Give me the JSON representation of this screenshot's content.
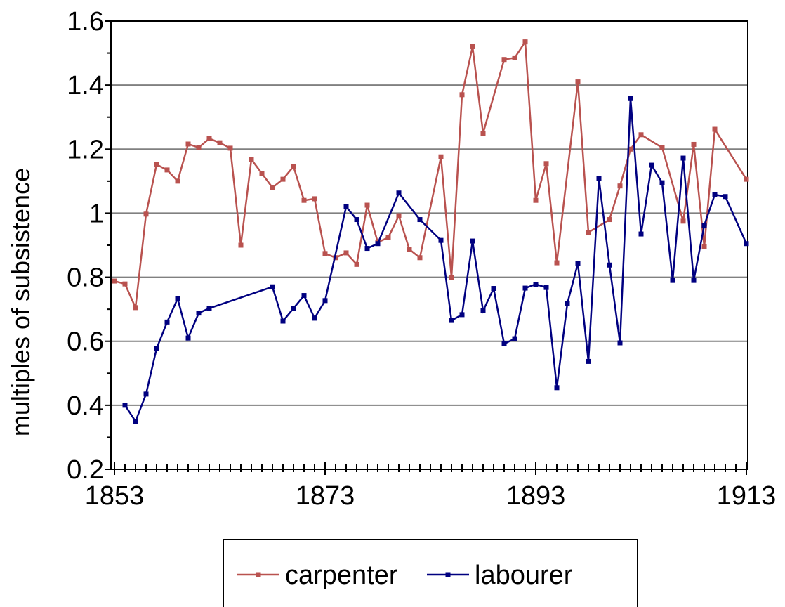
{
  "chart_data": {
    "type": "line",
    "ylabel": "multiples of subsistence",
    "xlim": [
      1853,
      1913
    ],
    "xticks": [
      1853,
      1873,
      1893,
      1913
    ],
    "ylim": [
      0.2,
      1.6
    ],
    "yticks": [
      0.2,
      0.4,
      0.6,
      0.8,
      1,
      1.2,
      1.4,
      1.6
    ],
    "grid": true,
    "legend": "bottom",
    "series": [
      {
        "name": "carpenter",
        "color": "#b9524f",
        "x": [
          1853,
          1854,
          1855,
          1856,
          1857,
          1858,
          1859,
          1860,
          1861,
          1862,
          1863,
          1864,
          1865,
          1866,
          1867,
          1868,
          1869,
          1870,
          1871,
          1872,
          1873,
          1874,
          1875,
          1876,
          1877,
          1878,
          1879,
          1880,
          1881,
          1882,
          1884,
          1885,
          1886,
          1887,
          1888,
          1890,
          1891,
          1892,
          1893,
          1894,
          1895,
          1897,
          1898,
          1900,
          1901,
          1902,
          1903,
          1905,
          1907,
          1908,
          1909,
          1910,
          1913
        ],
        "values": [
          0.788,
          0.779,
          0.705,
          0.997,
          1.152,
          1.135,
          1.1,
          1.216,
          1.205,
          1.233,
          1.22,
          1.203,
          0.9,
          1.168,
          1.124,
          1.08,
          1.106,
          1.146,
          1.04,
          1.045,
          0.874,
          0.861,
          0.876,
          0.84,
          1.025,
          0.909,
          0.924,
          0.992,
          0.887,
          0.861,
          1.176,
          0.8,
          1.37,
          1.52,
          1.25,
          1.48,
          1.485,
          1.535,
          1.04,
          1.155,
          0.845,
          1.41,
          0.94,
          0.98,
          1.085,
          1.2,
          1.245,
          1.205,
          0.975,
          1.215,
          0.895,
          1.262,
          1.106
        ]
      },
      {
        "name": "labourer",
        "color": "#000080",
        "x": [
          1854,
          1855,
          1856,
          1857,
          1858,
          1859,
          1860,
          1861,
          1862,
          1868,
          1869,
          1870,
          1871,
          1872,
          1873,
          1875,
          1876,
          1877,
          1878,
          1880,
          1882,
          1884,
          1885,
          1886,
          1887,
          1888,
          1889,
          1890,
          1891,
          1892,
          1893,
          1894,
          1895,
          1896,
          1897,
          1898,
          1899,
          1900,
          1901,
          1902,
          1903,
          1904,
          1905,
          1906,
          1907,
          1908,
          1909,
          1910,
          1911,
          1913
        ],
        "values": [
          0.4,
          0.35,
          0.435,
          0.577,
          0.66,
          0.733,
          0.61,
          0.688,
          0.703,
          0.77,
          0.663,
          0.703,
          0.743,
          0.672,
          0.727,
          1.02,
          0.98,
          0.89,
          0.905,
          1.063,
          0.98,
          0.915,
          0.665,
          0.683,
          0.913,
          0.695,
          0.765,
          0.592,
          0.608,
          0.766,
          0.778,
          0.768,
          0.455,
          0.718,
          0.843,
          0.537,
          1.108,
          0.838,
          0.595,
          1.358,
          0.935,
          1.15,
          1.095,
          0.79,
          1.172,
          0.79,
          0.962,
          1.058,
          1.052,
          0.905
        ]
      }
    ]
  }
}
